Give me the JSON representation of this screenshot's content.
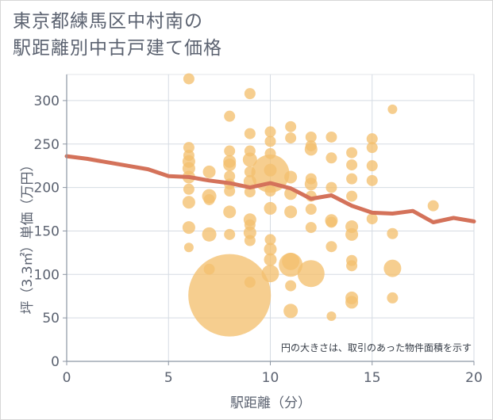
{
  "title_lines": [
    "東京都練馬区中村南の",
    "駅距離別中古戸建て価格"
  ],
  "chart_data": {
    "type": "scatter",
    "title": "東京都練馬区中村南の駅距離別中古戸建て価格",
    "xlabel": "駅距離（分）",
    "ylabel": "坪（3.3㎡）単価（万円）",
    "xlim": [
      0,
      20
    ],
    "ylim": [
      0,
      330
    ],
    "x_ticks": [
      0,
      5,
      10,
      15,
      20
    ],
    "y_ticks": [
      0,
      50,
      100,
      150,
      200,
      250,
      300
    ],
    "grid": true,
    "note": "円の大きさは、取引のあった物件面積を示す",
    "bubble_color": "#f3c06f",
    "line_color": "#d4725a",
    "bubbles": [
      {
        "x": 6,
        "y": 325,
        "r": 7
      },
      {
        "x": 6,
        "y": 246,
        "r": 7
      },
      {
        "x": 6,
        "y": 237,
        "r": 7
      },
      {
        "x": 6,
        "y": 230,
        "r": 8
      },
      {
        "x": 6,
        "y": 222,
        "r": 8
      },
      {
        "x": 6,
        "y": 212,
        "r": 8
      },
      {
        "x": 6,
        "y": 198,
        "r": 7
      },
      {
        "x": 6,
        "y": 183,
        "r": 8
      },
      {
        "x": 6,
        "y": 154,
        "r": 8
      },
      {
        "x": 6,
        "y": 131,
        "r": 6
      },
      {
        "x": 7,
        "y": 218,
        "r": 8
      },
      {
        "x": 7,
        "y": 190,
        "r": 9
      },
      {
        "x": 7,
        "y": 186,
        "r": 7
      },
      {
        "x": 7,
        "y": 146,
        "r": 9
      },
      {
        "x": 7,
        "y": 106,
        "r": 7
      },
      {
        "x": 8,
        "y": 282,
        "r": 7
      },
      {
        "x": 8,
        "y": 242,
        "r": 7
      },
      {
        "x": 8,
        "y": 230,
        "r": 8
      },
      {
        "x": 8,
        "y": 226,
        "r": 8
      },
      {
        "x": 8,
        "y": 213,
        "r": 7
      },
      {
        "x": 8,
        "y": 204,
        "r": 7
      },
      {
        "x": 8,
        "y": 196,
        "r": 7
      },
      {
        "x": 8,
        "y": 172,
        "r": 8
      },
      {
        "x": 8,
        "y": 146,
        "r": 7
      },
      {
        "x": 8,
        "y": 76,
        "r": 52
      },
      {
        "x": 9,
        "y": 308,
        "r": 7
      },
      {
        "x": 9,
        "y": 262,
        "r": 7
      },
      {
        "x": 9,
        "y": 242,
        "r": 7
      },
      {
        "x": 9,
        "y": 232,
        "r": 9
      },
      {
        "x": 9,
        "y": 218,
        "r": 7
      },
      {
        "x": 9,
        "y": 207,
        "r": 8
      },
      {
        "x": 9,
        "y": 195,
        "r": 7
      },
      {
        "x": 9,
        "y": 163,
        "r": 8
      },
      {
        "x": 9,
        "y": 157,
        "r": 7
      },
      {
        "x": 9,
        "y": 148,
        "r": 8
      },
      {
        "x": 9,
        "y": 139,
        "r": 7
      },
      {
        "x": 9,
        "y": 91,
        "r": 7
      },
      {
        "x": 10,
        "y": 264,
        "r": 7
      },
      {
        "x": 10,
        "y": 253,
        "r": 7
      },
      {
        "x": 10,
        "y": 239,
        "r": 7
      },
      {
        "x": 10,
        "y": 220,
        "r": 8
      },
      {
        "x": 10,
        "y": 216,
        "r": 24
      },
      {
        "x": 10,
        "y": 196,
        "r": 7
      },
      {
        "x": 10,
        "y": 176,
        "r": 8
      },
      {
        "x": 10,
        "y": 140,
        "r": 7
      },
      {
        "x": 10,
        "y": 129,
        "r": 8
      },
      {
        "x": 10,
        "y": 117,
        "r": 8
      },
      {
        "x": 10,
        "y": 101,
        "r": 11
      },
      {
        "x": 11,
        "y": 270,
        "r": 7
      },
      {
        "x": 11,
        "y": 257,
        "r": 7
      },
      {
        "x": 11,
        "y": 212,
        "r": 8
      },
      {
        "x": 11,
        "y": 193,
        "r": 8
      },
      {
        "x": 11,
        "y": 172,
        "r": 8
      },
      {
        "x": 11,
        "y": 115,
        "r": 11
      },
      {
        "x": 11,
        "y": 111,
        "r": 15
      },
      {
        "x": 11,
        "y": 87,
        "r": 7
      },
      {
        "x": 11,
        "y": 58,
        "r": 9
      },
      {
        "x": 12,
        "y": 258,
        "r": 7
      },
      {
        "x": 12,
        "y": 248,
        "r": 7
      },
      {
        "x": 12,
        "y": 244,
        "r": 8
      },
      {
        "x": 12,
        "y": 210,
        "r": 7
      },
      {
        "x": 12,
        "y": 204,
        "r": 8
      },
      {
        "x": 12,
        "y": 190,
        "r": 7
      },
      {
        "x": 12,
        "y": 175,
        "r": 7
      },
      {
        "x": 12,
        "y": 154,
        "r": 7
      },
      {
        "x": 12,
        "y": 101,
        "r": 17
      },
      {
        "x": 13,
        "y": 258,
        "r": 7
      },
      {
        "x": 13,
        "y": 234,
        "r": 7
      },
      {
        "x": 13,
        "y": 200,
        "r": 7
      },
      {
        "x": 13,
        "y": 162,
        "r": 8
      },
      {
        "x": 13,
        "y": 160,
        "r": 7
      },
      {
        "x": 13,
        "y": 132,
        "r": 7
      },
      {
        "x": 13,
        "y": 52,
        "r": 6
      },
      {
        "x": 14,
        "y": 240,
        "r": 7
      },
      {
        "x": 14,
        "y": 226,
        "r": 7
      },
      {
        "x": 14,
        "y": 210,
        "r": 7
      },
      {
        "x": 14,
        "y": 190,
        "r": 7
      },
      {
        "x": 14,
        "y": 155,
        "r": 8
      },
      {
        "x": 14,
        "y": 146,
        "r": 8
      },
      {
        "x": 14,
        "y": 116,
        "r": 7
      },
      {
        "x": 14,
        "y": 110,
        "r": 7
      },
      {
        "x": 14,
        "y": 73,
        "r": 8
      },
      {
        "x": 14,
        "y": 68,
        "r": 8
      },
      {
        "x": 15,
        "y": 256,
        "r": 7
      },
      {
        "x": 15,
        "y": 246,
        "r": 7
      },
      {
        "x": 15,
        "y": 225,
        "r": 7
      },
      {
        "x": 15,
        "y": 208,
        "r": 7
      },
      {
        "x": 15,
        "y": 164,
        "r": 7
      },
      {
        "x": 16,
        "y": 290,
        "r": 6
      },
      {
        "x": 16,
        "y": 147,
        "r": 7
      },
      {
        "x": 16,
        "y": 107,
        "r": 11
      },
      {
        "x": 16,
        "y": 73,
        "r": 7
      },
      {
        "x": 18,
        "y": 179,
        "r": 7
      }
    ],
    "series": [
      {
        "x": [
          0,
          1,
          2,
          3,
          4,
          5,
          6,
          7,
          8,
          9,
          10,
          11,
          12,
          13,
          14,
          15,
          16,
          17,
          18,
          19,
          20
        ],
        "values": [
          236,
          233,
          229,
          225,
          221,
          213,
          212,
          208,
          205,
          200,
          205,
          199,
          187,
          191,
          179,
          171,
          170,
          173,
          160,
          165,
          161
        ]
      }
    ]
  }
}
